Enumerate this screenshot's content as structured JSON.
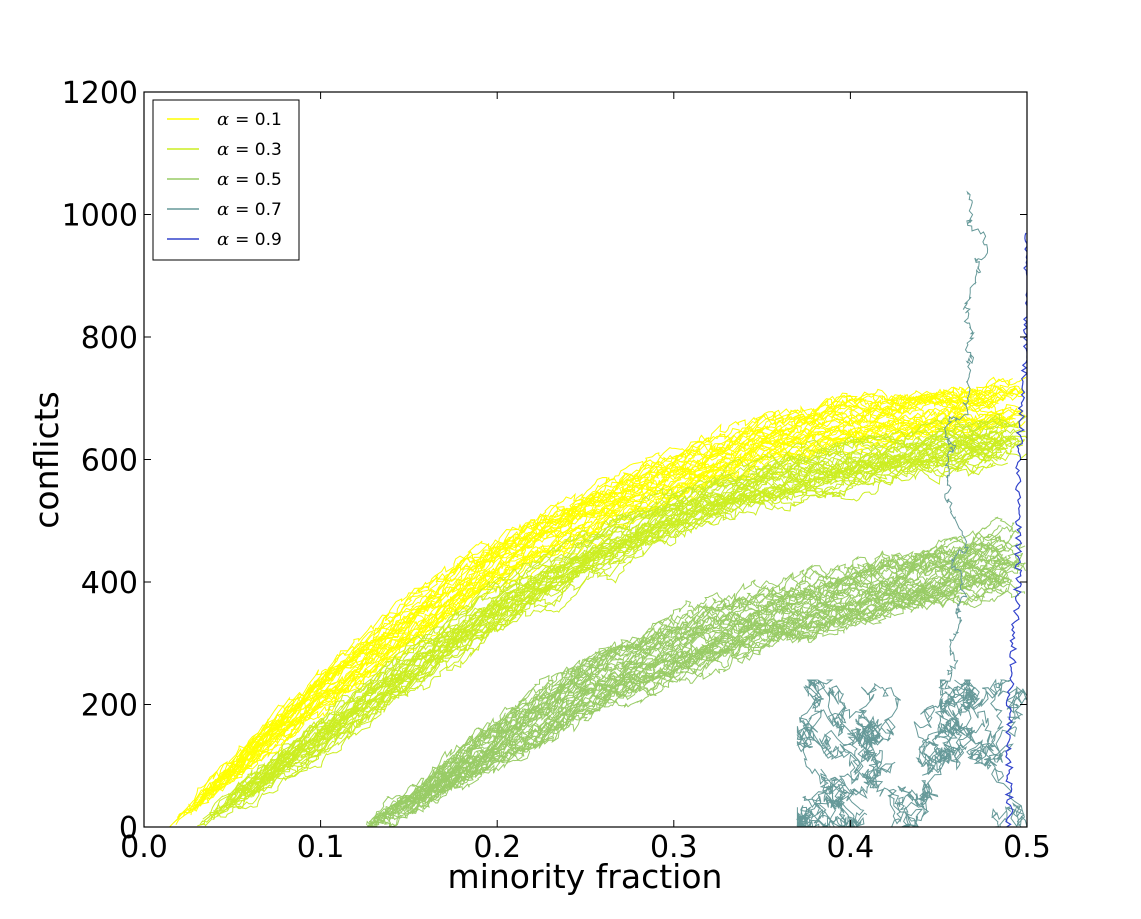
{
  "chart_data": {
    "type": "line",
    "title": "",
    "xlabel": "minority fraction",
    "ylabel": "conflicts",
    "xlim": [
      0.0,
      0.5
    ],
    "ylim": [
      0,
      1200
    ],
    "xticks": [
      "0.0",
      "0.1",
      "0.2",
      "0.3",
      "0.4",
      "0.5"
    ],
    "xtick_values": [
      0.0,
      0.1,
      0.2,
      0.3,
      0.4,
      0.5
    ],
    "yticks": [
      "0",
      "200",
      "400",
      "600",
      "800",
      "1000",
      "1200"
    ],
    "ytick_values": [
      0,
      200,
      400,
      600,
      800,
      1000,
      1200
    ],
    "grid": false,
    "legend_position": "top-left",
    "series": [
      {
        "name": "α = 0.1",
        "symbol": "α",
        "value_label": "= 0.1",
        "color": "#ffff00",
        "note": "many stochastic trajectories",
        "points": [
          [
            0.015,
            0
          ],
          [
            0.05,
            90
          ],
          [
            0.1,
            220
          ],
          [
            0.15,
            330
          ],
          [
            0.2,
            430
          ],
          [
            0.25,
            510
          ],
          [
            0.3,
            570
          ],
          [
            0.35,
            620
          ],
          [
            0.4,
            655
          ],
          [
            0.45,
            675
          ],
          [
            0.5,
            690
          ]
        ]
      },
      {
        "name": "α = 0.3",
        "symbol": "α",
        "value_label": "= 0.3",
        "color": "#ccee22",
        "note": "many stochastic trajectories",
        "points": [
          [
            0.03,
            0
          ],
          [
            0.07,
            90
          ],
          [
            0.1,
            150
          ],
          [
            0.15,
            260
          ],
          [
            0.2,
            360
          ],
          [
            0.25,
            440
          ],
          [
            0.3,
            510
          ],
          [
            0.35,
            560
          ],
          [
            0.4,
            595
          ],
          [
            0.45,
            620
          ],
          [
            0.5,
            640
          ]
        ]
      },
      {
        "name": "α = 0.5",
        "symbol": "α",
        "value_label": "= 0.5",
        "color": "#99cc66",
        "note": "many stochastic trajectories",
        "points": [
          [
            0.125,
            0
          ],
          [
            0.15,
            40
          ],
          [
            0.2,
            140
          ],
          [
            0.25,
            230
          ],
          [
            0.3,
            290
          ],
          [
            0.35,
            340
          ],
          [
            0.4,
            380
          ],
          [
            0.45,
            415
          ],
          [
            0.5,
            440
          ]
        ]
      },
      {
        "name": "α = 0.7",
        "symbol": "α",
        "value_label": "= 0.7",
        "color": "#669999",
        "note": "wandering trajectories near x≈0.38–0.5",
        "points": [
          [
            0.38,
            30
          ],
          [
            0.42,
            80
          ],
          [
            0.45,
            120
          ],
          [
            0.48,
            150
          ],
          [
            0.5,
            200
          ]
        ]
      },
      {
        "name": "α = 0.9",
        "symbol": "α",
        "value_label": "= 0.9",
        "color": "#3344cc",
        "note": "near-vertical trajectory close to x≈0.49–0.5",
        "points": [
          [
            0.49,
            0
          ],
          [
            0.49,
            200
          ],
          [
            0.495,
            400
          ],
          [
            0.495,
            600
          ],
          [
            0.5,
            800
          ],
          [
            0.5,
            970
          ]
        ]
      }
    ]
  }
}
